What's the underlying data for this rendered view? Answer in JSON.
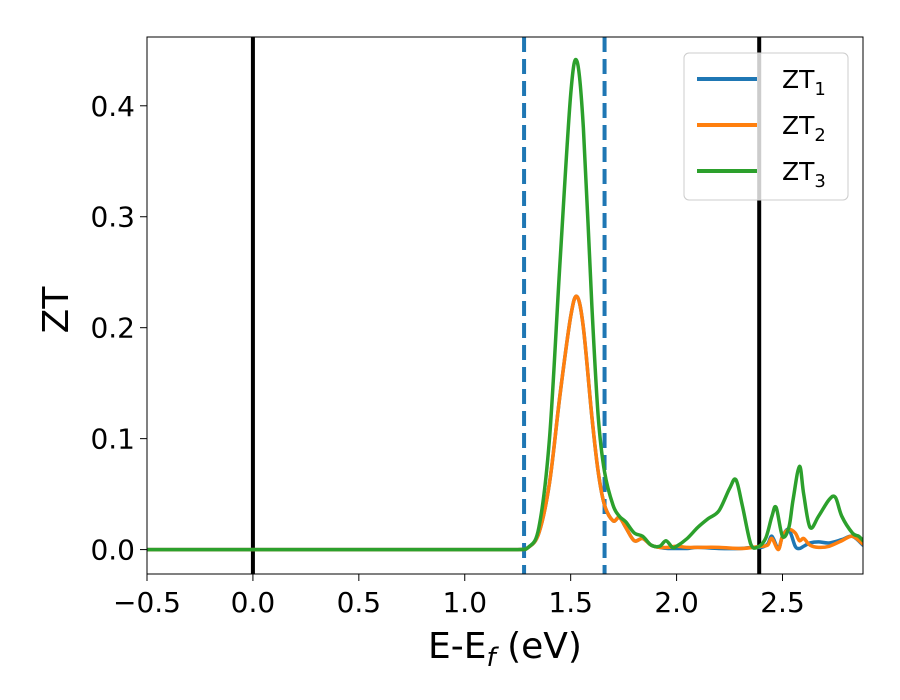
{
  "chart_data": {
    "type": "line",
    "xlabel": "E-E",
    "xlabel_sub": "f",
    "xlabel_unit": " (eV)",
    "ylabel": "ZT",
    "xlim": [
      -0.5,
      2.88
    ],
    "ylim": [
      -0.022,
      0.462
    ],
    "grid": false,
    "legend_position": "top-right",
    "x_ticks": [
      {
        "value": -0.5,
        "label": "−0.5"
      },
      {
        "value": 0.0,
        "label": "0.0"
      },
      {
        "value": 0.5,
        "label": "0.5"
      },
      {
        "value": 1.0,
        "label": "1.0"
      },
      {
        "value": 1.5,
        "label": "1.5"
      },
      {
        "value": 2.0,
        "label": "2.0"
      },
      {
        "value": 2.5,
        "label": "2.5"
      }
    ],
    "y_ticks": [
      {
        "value": 0.0,
        "label": "0.0"
      },
      {
        "value": 0.1,
        "label": "0.1"
      },
      {
        "value": 0.2,
        "label": "0.2"
      },
      {
        "value": 0.3,
        "label": "0.3"
      },
      {
        "value": 0.4,
        "label": "0.4"
      }
    ],
    "vlines": [
      {
        "x": 0.0,
        "color": "#000000",
        "style": "solid"
      },
      {
        "x": 2.39,
        "color": "#000000",
        "style": "solid"
      },
      {
        "x": 1.28,
        "color": "#1f77b4",
        "style": "dashed"
      },
      {
        "x": 1.66,
        "color": "#1f77b4",
        "style": "dashed"
      }
    ],
    "series": [
      {
        "name": "ZT",
        "sub": "1",
        "color": "#1f77b4",
        "x": [
          -0.5,
          1.0,
          1.25,
          1.3,
          1.35,
          1.4,
          1.45,
          1.5,
          1.53,
          1.56,
          1.6,
          1.63,
          1.66,
          1.7,
          1.73,
          1.76,
          1.8,
          1.84,
          1.88,
          1.92,
          1.96,
          2.0,
          2.05,
          2.1,
          2.2,
          2.3,
          2.36,
          2.4,
          2.43,
          2.45,
          2.48,
          2.5,
          2.53,
          2.56,
          2.58,
          2.6,
          2.63,
          2.67,
          2.72,
          2.78,
          2.83,
          2.88
        ],
        "y": [
          0.0,
          0.0,
          0.0,
          0.002,
          0.015,
          0.06,
          0.14,
          0.21,
          0.228,
          0.2,
          0.12,
          0.07,
          0.04,
          0.026,
          0.029,
          0.02,
          0.008,
          0.01,
          0.004,
          0.002,
          0.001,
          0.001,
          0.001,
          0.002,
          0.001,
          0.001,
          0.002,
          0.002,
          0.005,
          0.012,
          0.001,
          0.012,
          0.018,
          0.003,
          0.001,
          0.003,
          0.006,
          0.007,
          0.006,
          0.009,
          0.012,
          0.004
        ]
      },
      {
        "name": "ZT",
        "sub": "2",
        "color": "#ff7f0e",
        "x": [
          -0.5,
          1.0,
          1.25,
          1.3,
          1.35,
          1.4,
          1.45,
          1.5,
          1.53,
          1.56,
          1.6,
          1.63,
          1.66,
          1.7,
          1.73,
          1.76,
          1.8,
          1.84,
          1.88,
          1.92,
          1.96,
          2.0,
          2.05,
          2.1,
          2.2,
          2.3,
          2.36,
          2.4,
          2.43,
          2.45,
          2.48,
          2.5,
          2.53,
          2.56,
          2.58,
          2.6,
          2.63,
          2.67,
          2.72,
          2.78,
          2.83,
          2.88
        ],
        "y": [
          0.0,
          0.0,
          0.0,
          0.002,
          0.015,
          0.06,
          0.14,
          0.21,
          0.228,
          0.2,
          0.12,
          0.07,
          0.04,
          0.026,
          0.029,
          0.02,
          0.008,
          0.01,
          0.004,
          0.002,
          0.002,
          0.003,
          0.002,
          0.002,
          0.002,
          0.001,
          0.002,
          0.003,
          0.004,
          0.01,
          0.0,
          0.012,
          0.018,
          0.015,
          0.008,
          0.01,
          0.004,
          0.002,
          0.003,
          0.008,
          0.012,
          0.005
        ]
      },
      {
        "name": "ZT",
        "sub": "3",
        "color": "#2ca02c",
        "x": [
          -0.5,
          1.0,
          1.25,
          1.3,
          1.35,
          1.4,
          1.45,
          1.5,
          1.53,
          1.56,
          1.6,
          1.63,
          1.66,
          1.7,
          1.73,
          1.76,
          1.8,
          1.84,
          1.88,
          1.92,
          1.95,
          1.98,
          2.0,
          2.05,
          2.1,
          2.15,
          2.2,
          2.25,
          2.28,
          2.31,
          2.35,
          2.38,
          2.42,
          2.45,
          2.47,
          2.5,
          2.53,
          2.55,
          2.58,
          2.6,
          2.63,
          2.67,
          2.72,
          2.75,
          2.78,
          2.83,
          2.86,
          2.88
        ],
        "y": [
          0.0,
          0.0,
          0.0,
          0.002,
          0.02,
          0.1,
          0.26,
          0.41,
          0.44,
          0.38,
          0.22,
          0.12,
          0.07,
          0.04,
          0.03,
          0.025,
          0.015,
          0.012,
          0.004,
          0.003,
          0.008,
          0.002,
          0.003,
          0.01,
          0.02,
          0.028,
          0.035,
          0.055,
          0.063,
          0.04,
          0.005,
          0.002,
          0.01,
          0.03,
          0.038,
          0.012,
          0.02,
          0.045,
          0.075,
          0.05,
          0.02,
          0.03,
          0.045,
          0.047,
          0.03,
          0.015,
          0.012,
          0.008
        ]
      }
    ]
  }
}
